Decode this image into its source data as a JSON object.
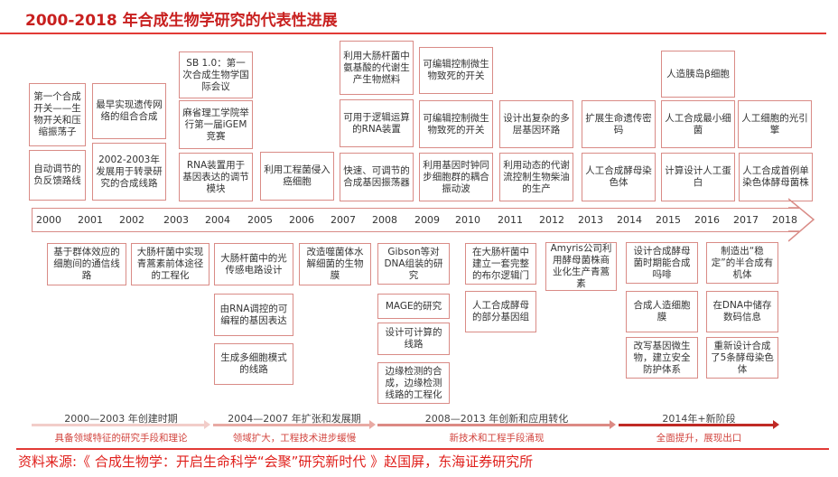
{
  "title": "2000-2018 年合成生物学研究的代表性进展",
  "years": [
    "2000",
    "2001",
    "2002",
    "2003",
    "2004",
    "2005",
    "2006",
    "2007",
    "2008",
    "2009",
    "2010",
    "2011",
    "2012",
    "2013",
    "2014",
    "2015",
    "2016",
    "2017",
    "2018"
  ],
  "top_events": [
    "第一个合成开关——生物开关和压缩振荡子",
    "自动调节的负反馈路线",
    "最早实现遗传网络的组合合成",
    "2002-2003年发展用于转录研究的合成线路",
    "SB 1.0：第一次合成生物学国际会议",
    "麻省理工学院举行第一届iGEM竞赛",
    "RNA装置用于基因表达的调节模块",
    "利用工程菌侵入癌细胞",
    "利用大肠杆菌中氨基酸的代谢生产生物燃料",
    "可用于逻辑运算的RNA装置",
    "快速、可调节的合成基因振荡器",
    "可编辑控制微生物致死的开关",
    "可编辑控制微生物致死的开关",
    "利用基因时钟同步细胞群的耦合振动波",
    "设计出复杂的多层基因环路",
    "利用动态的代谢流控制生物柴油的生产",
    "扩展生命遗传密码",
    "人工合成酵母染色体",
    "人造胰岛β细胞",
    "人工合成最小细菌",
    "计算设计人工蛋白",
    "人工细胞的光引擎",
    "人工合成首例单染色体酵母菌株"
  ],
  "bottom_events": [
    "基于群体效应的细胞间的通信线路",
    "大肠杆菌中实现青蒿素前体途径的工程化",
    "大肠杆菌中的光传感电路设计",
    "由RNA调控的可编程的基因表达",
    "生成多细胞模式的线路",
    "改造噬菌体水解细菌的生物膜",
    "Gibson等对DNA组装的研究",
    "MAGE的研究",
    "设计可计算的线路",
    "边缘检测的合成，边缘检测线路的工程化",
    "在大肠杆菌中建立一套完整的布尔逻辑门",
    "人工合成酵母的部分基因组",
    "Amyris公司利用酵母菌株商业化生产青蒿素",
    "设计合成酵母菌时期能合成吗啡",
    "合成人造细胞膜",
    "改写基因微生物，建立安全防护体系",
    "制造出“稳定”的半合成有机体",
    "在DNA中储存数码信息",
    "重新设计合成了5条酵母染色体"
  ],
  "periods": [
    {
      "label": "2000—2003 年创建时期",
      "sub": "具备领域特征的研究手段和理论",
      "color": "#f2cdc9"
    },
    {
      "label": "2004—2007 年扩张和发展期",
      "sub": "领域扩大，工程技术进步缓慢",
      "color": "#e8aaa4"
    },
    {
      "label": "2008—2013 年创新和应用转化",
      "sub": "新技术和工程手段涌现",
      "color": "#dc8a84"
    },
    {
      "label": "2014年+新阶段",
      "sub": "全面提升，展现出口",
      "color": "#c02a25"
    }
  ],
  "source": "资料来源:《 合成生物学：开启生命科学“会聚”研究新时代 》赵国屏，东海证券研究所"
}
